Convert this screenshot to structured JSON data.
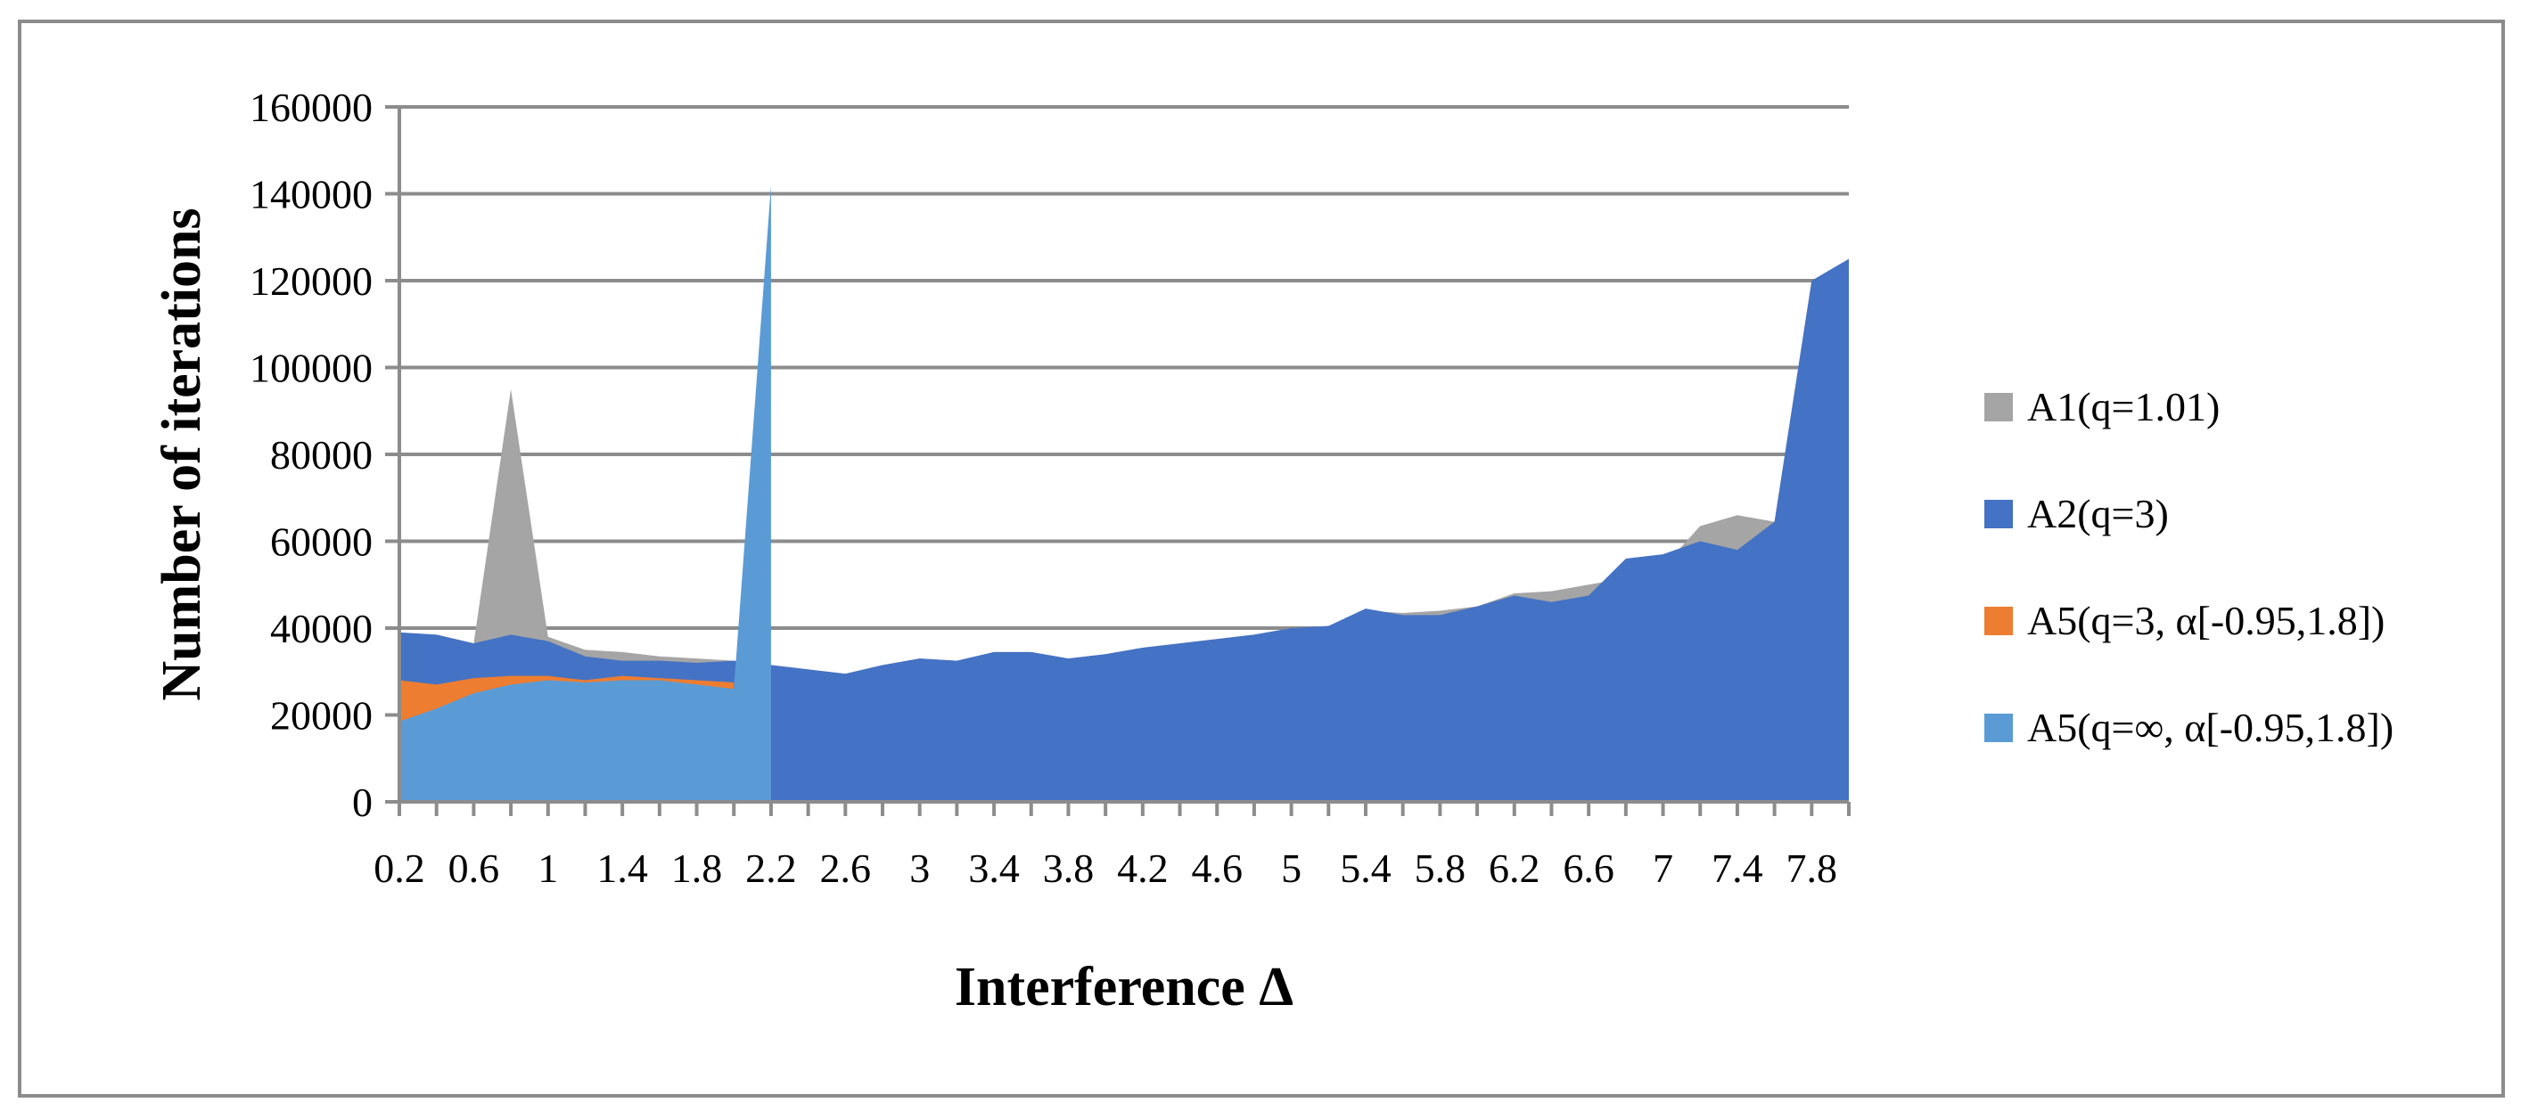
{
  "chart_data": {
    "type": "area",
    "xlabel": "Interference Δ",
    "ylabel": "Number of iterations",
    "ylim": [
      0,
      160000
    ],
    "yticks": [
      "0",
      "20000",
      "40000",
      "60000",
      "80000",
      "100000",
      "120000",
      "140000",
      "160000"
    ],
    "xticks": [
      "0.2",
      "0.6",
      "1",
      "1.4",
      "1.8",
      "2.2",
      "2.6",
      "3",
      "3.4",
      "3.8",
      "4.2",
      "4.6",
      "5",
      "5.4",
      "5.8",
      "6.2",
      "6.6",
      "7",
      "7.4",
      "7.8"
    ],
    "x": [
      0.2,
      0.4,
      0.6,
      0.8,
      1.0,
      1.2,
      1.4,
      1.6,
      1.8,
      2.0,
      2.2,
      2.4,
      2.6,
      2.8,
      3.0,
      3.2,
      3.4,
      3.6,
      3.8,
      4.0,
      4.2,
      4.4,
      4.6,
      4.8,
      5.0,
      5.2,
      5.4,
      5.6,
      5.8,
      6.0,
      6.2,
      6.4,
      6.6,
      6.8,
      7.0,
      7.2,
      7.4,
      7.6,
      7.8,
      8.0
    ],
    "grid": true,
    "legend_position": "right",
    "series": [
      {
        "name": "A1(q=1.01)",
        "color": "#a5a5a5",
        "values": [
          39000,
          38500,
          36500,
          95000,
          38000,
          35000,
          34500,
          33500,
          33000,
          32500,
          31500,
          30500,
          29500,
          31500,
          33000,
          32500,
          34500,
          34500,
          33000,
          34000,
          35500,
          36500,
          37500,
          38500,
          40000,
          40500,
          44000,
          43500,
          44000,
          45000,
          48000,
          48500,
          50000,
          51500,
          54000,
          63500,
          66000,
          64500,
          120000,
          125000
        ]
      },
      {
        "name": "A2(q=3)",
        "color": "#4472c4",
        "values": [
          39000,
          38500,
          36500,
          38500,
          37000,
          33500,
          32500,
          32500,
          32000,
          32500,
          31500,
          30500,
          29500,
          31500,
          33000,
          32500,
          34500,
          34500,
          33000,
          34000,
          35500,
          36500,
          37500,
          38500,
          40000,
          40500,
          44500,
          43000,
          43000,
          45000,
          47500,
          46000,
          47500,
          56000,
          57000,
          60000,
          58000,
          64500,
          120000,
          125000
        ]
      },
      {
        "name": "A5(q=3, α[-0.95,1.8])",
        "color": "#ed7d31",
        "values": [
          28000,
          27000,
          28500,
          29000,
          29000,
          28000,
          29000,
          28500,
          28000,
          27500,
          null,
          null,
          null,
          null,
          null,
          null,
          null,
          null,
          null,
          null,
          null,
          null,
          null,
          null,
          null,
          null,
          null,
          null,
          null,
          null,
          null,
          null,
          null,
          null,
          null,
          null,
          null,
          null,
          null,
          null
        ]
      },
      {
        "name": "A5(q=∞, α[-0.95,1.8])",
        "color": "#5b9bd5",
        "values": [
          18500,
          21500,
          25000,
          27000,
          28000,
          27500,
          28000,
          28000,
          27000,
          26000,
          142000,
          null,
          null,
          null,
          null,
          null,
          null,
          null,
          null,
          null,
          null,
          null,
          null,
          null,
          null,
          null,
          null,
          null,
          null,
          null,
          null,
          null,
          null,
          null,
          null,
          null,
          null,
          null,
          null,
          null
        ]
      }
    ]
  }
}
